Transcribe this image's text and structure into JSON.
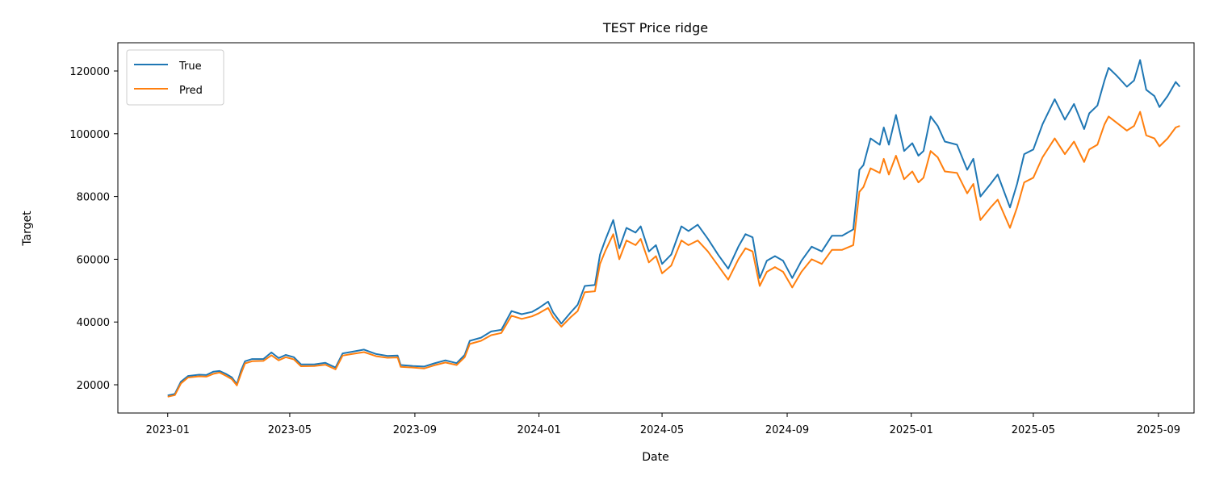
{
  "chart_data": {
    "type": "line",
    "title": "TEST Price ridge",
    "xlabel": "Date",
    "ylabel": "Target",
    "xlim": [
      "2022-11-13",
      "2025-10-06"
    ],
    "ylim": [
      11000,
      129000
    ],
    "x_ticks": [
      "2023-01",
      "2023-05",
      "2023-09",
      "2024-01",
      "2024-05",
      "2024-09",
      "2025-01",
      "2025-05",
      "2025-09"
    ],
    "y_ticks": [
      20000,
      40000,
      60000,
      80000,
      100000,
      120000
    ],
    "legend": {
      "position": "top-left"
    },
    "grid": false,
    "series": [
      {
        "name": "True",
        "color": "#1f77b4",
        "points": [
          [
            "2023-01-01",
            16600
          ],
          [
            "2023-01-08",
            17100
          ],
          [
            "2023-01-14",
            21000
          ],
          [
            "2023-01-21",
            22800
          ],
          [
            "2023-02-01",
            23200
          ],
          [
            "2023-02-08",
            23100
          ],
          [
            "2023-02-15",
            24200
          ],
          [
            "2023-02-21",
            24400
          ],
          [
            "2023-02-27",
            23500
          ],
          [
            "2023-03-05",
            22400
          ],
          [
            "2023-03-10",
            20200
          ],
          [
            "2023-03-14",
            24500
          ],
          [
            "2023-03-18",
            27500
          ],
          [
            "2023-03-25",
            28200
          ],
          [
            "2023-04-05",
            28200
          ],
          [
            "2023-04-13",
            30300
          ],
          [
            "2023-04-20",
            28500
          ],
          [
            "2023-04-27",
            29500
          ],
          [
            "2023-05-05",
            28800
          ],
          [
            "2023-05-12",
            26500
          ],
          [
            "2023-05-25",
            26500
          ],
          [
            "2023-06-05",
            27000
          ],
          [
            "2023-06-15",
            25500
          ],
          [
            "2023-06-22",
            30000
          ],
          [
            "2023-07-01",
            30500
          ],
          [
            "2023-07-13",
            31200
          ],
          [
            "2023-07-25",
            29800
          ],
          [
            "2023-08-05",
            29200
          ],
          [
            "2023-08-15",
            29300
          ],
          [
            "2023-08-18",
            26300
          ],
          [
            "2023-08-30",
            26000
          ],
          [
            "2023-09-10",
            25800
          ],
          [
            "2023-09-20",
            26800
          ],
          [
            "2023-10-01",
            27800
          ],
          [
            "2023-10-12",
            26900
          ],
          [
            "2023-10-20",
            29500
          ],
          [
            "2023-10-25",
            34000
          ],
          [
            "2023-11-05",
            35000
          ],
          [
            "2023-11-15",
            37000
          ],
          [
            "2023-11-25",
            37500
          ],
          [
            "2023-12-05",
            43500
          ],
          [
            "2023-12-15",
            42500
          ],
          [
            "2023-12-25",
            43200
          ],
          [
            "2024-01-01",
            44500
          ],
          [
            "2024-01-10",
            46500
          ],
          [
            "2024-01-15",
            43000
          ],
          [
            "2024-01-23",
            39500
          ],
          [
            "2024-02-01",
            43000
          ],
          [
            "2024-02-08",
            45500
          ],
          [
            "2024-02-15",
            51500
          ],
          [
            "2024-02-25",
            51800
          ],
          [
            "2024-03-01",
            61500
          ],
          [
            "2024-03-06",
            66000
          ],
          [
            "2024-03-14",
            72500
          ],
          [
            "2024-03-20",
            63500
          ],
          [
            "2024-03-27",
            70000
          ],
          [
            "2024-04-05",
            68500
          ],
          [
            "2024-04-10",
            70500
          ],
          [
            "2024-04-18",
            62500
          ],
          [
            "2024-04-25",
            64500
          ],
          [
            "2024-05-01",
            58500
          ],
          [
            "2024-05-10",
            61500
          ],
          [
            "2024-05-20",
            70500
          ],
          [
            "2024-05-27",
            69000
          ],
          [
            "2024-06-05",
            71000
          ],
          [
            "2024-06-15",
            66500
          ],
          [
            "2024-06-25",
            61500
          ],
          [
            "2024-07-05",
            57000
          ],
          [
            "2024-07-15",
            64000
          ],
          [
            "2024-07-22",
            68000
          ],
          [
            "2024-07-29",
            67000
          ],
          [
            "2024-08-05",
            54000
          ],
          [
            "2024-08-12",
            59500
          ],
          [
            "2024-08-20",
            61000
          ],
          [
            "2024-08-28",
            59500
          ],
          [
            "2024-09-06",
            54000
          ],
          [
            "2024-09-15",
            59500
          ],
          [
            "2024-09-25",
            64000
          ],
          [
            "2024-10-05",
            62500
          ],
          [
            "2024-10-15",
            67500
          ],
          [
            "2024-10-25",
            67500
          ],
          [
            "2024-11-05",
            69500
          ],
          [
            "2024-11-11",
            88500
          ],
          [
            "2024-11-15",
            90000
          ],
          [
            "2024-11-22",
            98500
          ],
          [
            "2024-12-01",
            96500
          ],
          [
            "2024-12-05",
            102000
          ],
          [
            "2024-12-10",
            96500
          ],
          [
            "2024-12-17",
            106000
          ],
          [
            "2024-12-25",
            94500
          ],
          [
            "2025-01-02",
            97000
          ],
          [
            "2025-01-08",
            93000
          ],
          [
            "2025-01-13",
            94500
          ],
          [
            "2025-01-20",
            105500
          ],
          [
            "2025-01-27",
            102500
          ],
          [
            "2025-02-03",
            97500
          ],
          [
            "2025-02-15",
            96500
          ],
          [
            "2025-02-25",
            88500
          ],
          [
            "2025-03-03",
            92000
          ],
          [
            "2025-03-10",
            80000
          ],
          [
            "2025-03-20",
            84000
          ],
          [
            "2025-03-27",
            87000
          ],
          [
            "2025-04-08",
            76500
          ],
          [
            "2025-04-15",
            84000
          ],
          [
            "2025-04-22",
            93500
          ],
          [
            "2025-05-01",
            95000
          ],
          [
            "2025-05-10",
            103000
          ],
          [
            "2025-05-22",
            111000
          ],
          [
            "2025-06-01",
            104500
          ],
          [
            "2025-06-10",
            109500
          ],
          [
            "2025-06-20",
            101500
          ],
          [
            "2025-06-25",
            106500
          ],
          [
            "2025-07-03",
            109000
          ],
          [
            "2025-07-10",
            117000
          ],
          [
            "2025-07-14",
            121000
          ],
          [
            "2025-07-22",
            118500
          ],
          [
            "2025-08-01",
            115000
          ],
          [
            "2025-08-08",
            117000
          ],
          [
            "2025-08-14",
            123500
          ],
          [
            "2025-08-20",
            114000
          ],
          [
            "2025-08-28",
            112000
          ],
          [
            "2025-09-02",
            108500
          ],
          [
            "2025-09-10",
            112000
          ],
          [
            "2025-09-18",
            116500
          ],
          [
            "2025-09-22",
            115000
          ]
        ]
      },
      {
        "name": "Pred",
        "color": "#ff7f0e",
        "points": [
          [
            "2023-01-01",
            16200
          ],
          [
            "2023-01-08",
            16700
          ],
          [
            "2023-01-14",
            20400
          ],
          [
            "2023-01-21",
            22300
          ],
          [
            "2023-02-01",
            22700
          ],
          [
            "2023-02-08",
            22600
          ],
          [
            "2023-02-15",
            23500
          ],
          [
            "2023-02-21",
            23900
          ],
          [
            "2023-02-27",
            22900
          ],
          [
            "2023-03-05",
            21800
          ],
          [
            "2023-03-10",
            19800
          ],
          [
            "2023-03-14",
            23500
          ],
          [
            "2023-03-18",
            26800
          ],
          [
            "2023-03-25",
            27500
          ],
          [
            "2023-04-05",
            27600
          ],
          [
            "2023-04-13",
            29400
          ],
          [
            "2023-04-20",
            27800
          ],
          [
            "2023-04-27",
            28800
          ],
          [
            "2023-05-05",
            28100
          ],
          [
            "2023-05-12",
            25900
          ],
          [
            "2023-05-25",
            26000
          ],
          [
            "2023-06-05",
            26400
          ],
          [
            "2023-06-15",
            24900
          ],
          [
            "2023-06-22",
            29300
          ],
          [
            "2023-07-01",
            29800
          ],
          [
            "2023-07-13",
            30400
          ],
          [
            "2023-07-25",
            29100
          ],
          [
            "2023-08-05",
            28600
          ],
          [
            "2023-08-15",
            28700
          ],
          [
            "2023-08-18",
            25700
          ],
          [
            "2023-08-30",
            25500
          ],
          [
            "2023-09-10",
            25200
          ],
          [
            "2023-09-20",
            26200
          ],
          [
            "2023-10-01",
            27100
          ],
          [
            "2023-10-12",
            26300
          ],
          [
            "2023-10-20",
            28800
          ],
          [
            "2023-10-25",
            33000
          ],
          [
            "2023-11-05",
            34000
          ],
          [
            "2023-11-15",
            35800
          ],
          [
            "2023-11-25",
            36500
          ],
          [
            "2023-12-05",
            42000
          ],
          [
            "2023-12-15",
            41000
          ],
          [
            "2023-12-25",
            41800
          ],
          [
            "2024-01-01",
            42800
          ],
          [
            "2024-01-10",
            44500
          ],
          [
            "2024-01-15",
            41500
          ],
          [
            "2024-01-23",
            38500
          ],
          [
            "2024-02-01",
            41500
          ],
          [
            "2024-02-08",
            43500
          ],
          [
            "2024-02-15",
            49500
          ],
          [
            "2024-02-25",
            49800
          ],
          [
            "2024-03-01",
            58500
          ],
          [
            "2024-03-06",
            62500
          ],
          [
            "2024-03-14",
            68000
          ],
          [
            "2024-03-20",
            60000
          ],
          [
            "2024-03-27",
            66000
          ],
          [
            "2024-04-05",
            64500
          ],
          [
            "2024-04-10",
            66500
          ],
          [
            "2024-04-18",
            59000
          ],
          [
            "2024-04-25",
            61000
          ],
          [
            "2024-05-01",
            55500
          ],
          [
            "2024-05-10",
            58000
          ],
          [
            "2024-05-20",
            66000
          ],
          [
            "2024-05-27",
            64500
          ],
          [
            "2024-06-05",
            66000
          ],
          [
            "2024-06-15",
            62500
          ],
          [
            "2024-06-25",
            58000
          ],
          [
            "2024-07-05",
            53500
          ],
          [
            "2024-07-15",
            60000
          ],
          [
            "2024-07-22",
            63500
          ],
          [
            "2024-07-29",
            62500
          ],
          [
            "2024-08-05",
            51500
          ],
          [
            "2024-08-12",
            56000
          ],
          [
            "2024-08-20",
            57500
          ],
          [
            "2024-08-28",
            56000
          ],
          [
            "2024-09-06",
            51000
          ],
          [
            "2024-09-15",
            56000
          ],
          [
            "2024-09-25",
            60000
          ],
          [
            "2024-10-05",
            58500
          ],
          [
            "2024-10-15",
            63000
          ],
          [
            "2024-10-25",
            63000
          ],
          [
            "2024-11-05",
            64500
          ],
          [
            "2024-11-11",
            81500
          ],
          [
            "2024-11-15",
            83000
          ],
          [
            "2024-11-22",
            89000
          ],
          [
            "2024-12-01",
            87500
          ],
          [
            "2024-12-05",
            92000
          ],
          [
            "2024-12-10",
            87000
          ],
          [
            "2024-12-17",
            93000
          ],
          [
            "2024-12-25",
            85500
          ],
          [
            "2025-01-02",
            88000
          ],
          [
            "2025-01-08",
            84500
          ],
          [
            "2025-01-13",
            86000
          ],
          [
            "2025-01-20",
            94500
          ],
          [
            "2025-01-27",
            92500
          ],
          [
            "2025-02-03",
            88000
          ],
          [
            "2025-02-15",
            87500
          ],
          [
            "2025-02-25",
            81000
          ],
          [
            "2025-03-03",
            84000
          ],
          [
            "2025-03-10",
            72500
          ],
          [
            "2025-03-20",
            76500
          ],
          [
            "2025-03-27",
            79000
          ],
          [
            "2025-04-08",
            70000
          ],
          [
            "2025-04-15",
            76500
          ],
          [
            "2025-04-22",
            84500
          ],
          [
            "2025-05-01",
            86000
          ],
          [
            "2025-05-10",
            92500
          ],
          [
            "2025-05-22",
            98500
          ],
          [
            "2025-06-01",
            93500
          ],
          [
            "2025-06-10",
            97500
          ],
          [
            "2025-06-20",
            91000
          ],
          [
            "2025-06-25",
            95000
          ],
          [
            "2025-07-03",
            96500
          ],
          [
            "2025-07-10",
            103000
          ],
          [
            "2025-07-14",
            105500
          ],
          [
            "2025-07-22",
            103500
          ],
          [
            "2025-08-01",
            101000
          ],
          [
            "2025-08-08",
            102500
          ],
          [
            "2025-08-14",
            107000
          ],
          [
            "2025-08-20",
            99500
          ],
          [
            "2025-08-28",
            98500
          ],
          [
            "2025-09-02",
            96000
          ],
          [
            "2025-09-10",
            98500
          ],
          [
            "2025-09-18",
            102000
          ],
          [
            "2025-09-22",
            102500
          ]
        ]
      }
    ]
  }
}
